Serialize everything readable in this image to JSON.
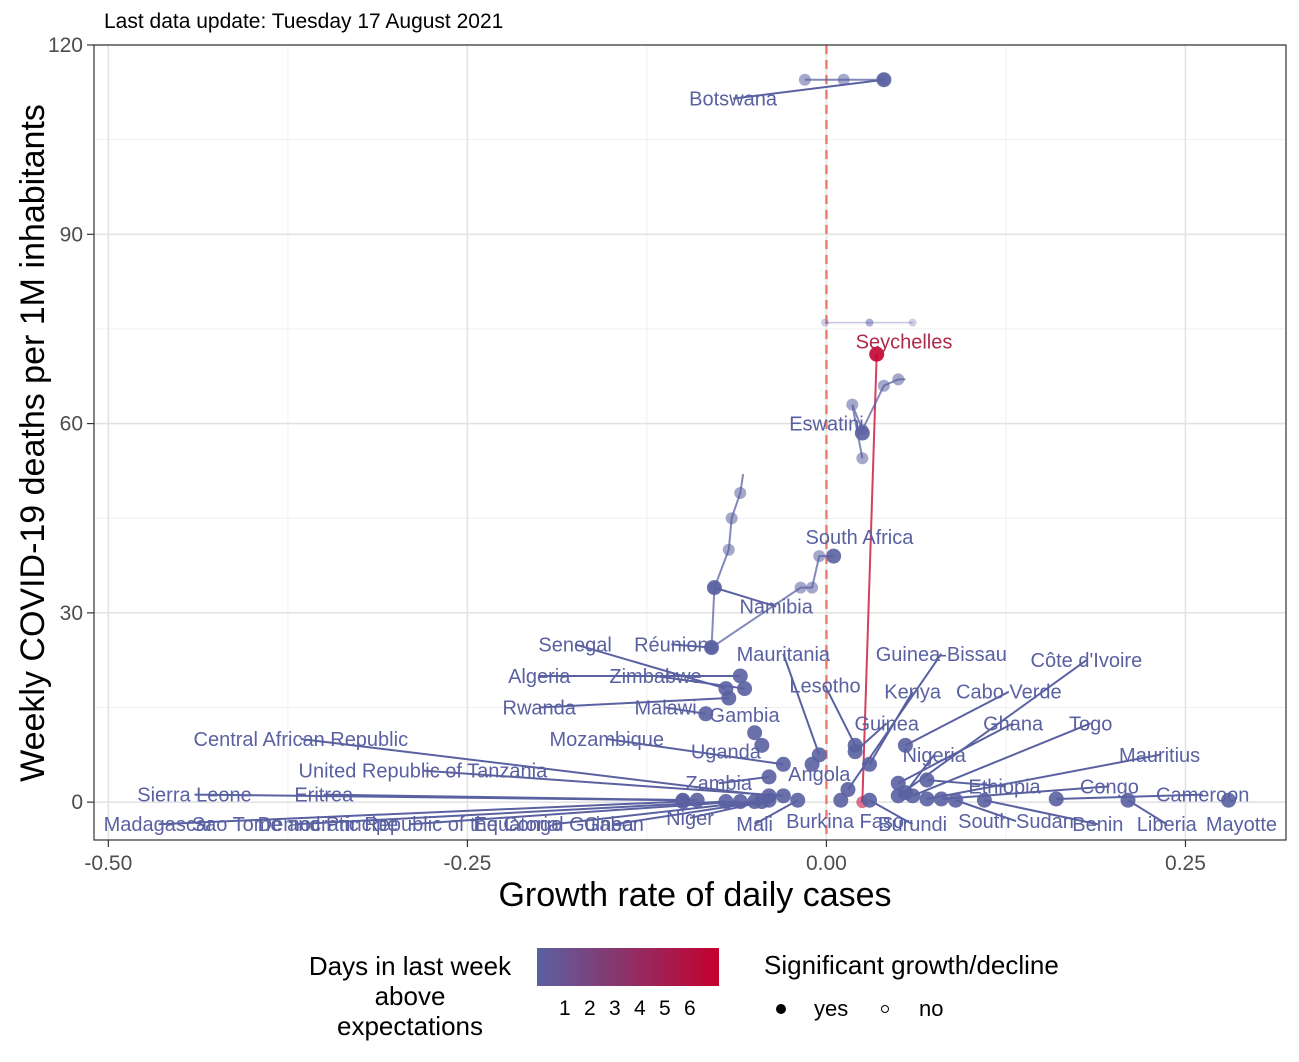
{
  "chart_data": {
    "type": "scatter",
    "subtitle": "Last data update: Tuesday 17 August 2021",
    "xlabel": "Growth rate of daily cases",
    "ylabel": "Weekly COVID-19 deaths per 1M inhabitants",
    "xlim": [
      -0.51,
      0.32
    ],
    "ylim": [
      -6,
      120
    ],
    "x_ticks": [
      -0.5,
      -0.25,
      0,
      0.25
    ],
    "x_tick_labels": [
      "-0.50",
      "-0.25",
      "0.00",
      "0.25"
    ],
    "y_ticks": [
      0,
      30,
      60,
      90,
      120
    ],
    "y_tick_labels": [
      "0",
      "30",
      "60",
      "90",
      "120"
    ],
    "grid": true,
    "reference_line": {
      "x": 0,
      "style": "dashed",
      "color": "#f07a6a"
    },
    "colors": {
      "low": "#5a61a1",
      "high": "#c4002d",
      "mid": "#8a5a8e"
    },
    "series": [
      {
        "country": "Botswana",
        "x": 0.04,
        "y": 114.5,
        "days": 1,
        "trail": [
          [
            -0.015,
            114.5
          ],
          [
            0.012,
            114.5
          ],
          [
            0.04,
            114.5
          ],
          [
            0.04,
            114.5
          ]
        ],
        "faded_trail": [
          [
            0.03,
            76
          ],
          [
            -0.001,
            76
          ],
          [
            0.03,
            76
          ],
          [
            0.06,
            76
          ]
        ]
      },
      {
        "country": "Seychelles",
        "x": 0.035,
        "y": 71,
        "days": 6,
        "trail": [
          [
            0.025,
            0
          ],
          [
            0.035,
            71
          ]
        ]
      },
      {
        "country": "Eswatini",
        "x": 0.025,
        "y": 58.5,
        "days": 1,
        "trail": [
          [
            0.025,
            54.5
          ],
          [
            0.018,
            63
          ],
          [
            0.025,
            59
          ],
          [
            0.04,
            66
          ],
          [
            0.05,
            67
          ],
          [
            0.055,
            67
          ]
        ]
      },
      {
        "country": "South Africa",
        "x": 0.005,
        "y": 39,
        "days": 1,
        "trail": [
          [
            -0.08,
            24.5
          ],
          [
            -0.018,
            34
          ],
          [
            -0.01,
            34
          ],
          [
            -0.005,
            39
          ],
          [
            0.005,
            39
          ]
        ]
      },
      {
        "country": "Namibia",
        "x": -0.078,
        "y": 34,
        "days": 1,
        "trail": [
          [
            -0.08,
            24.5
          ],
          [
            -0.078,
            34
          ],
          [
            -0.068,
            40
          ],
          [
            -0.066,
            45
          ],
          [
            -0.06,
            49
          ],
          [
            -0.058,
            52
          ]
        ]
      },
      {
        "country": "Réunion",
        "x": -0.08,
        "y": 24.5,
        "days": 1
      },
      {
        "country": "Senegal",
        "x": -0.07,
        "y": 18,
        "days": 1
      },
      {
        "country": "Zimbabwe",
        "x": -0.057,
        "y": 18,
        "days": 1
      },
      {
        "country": "Algeria",
        "x": -0.06,
        "y": 20,
        "days": 1
      },
      {
        "country": "Malawi",
        "x": -0.084,
        "y": 14,
        "days": 1
      },
      {
        "country": "Rwanda",
        "x": -0.068,
        "y": 16.5,
        "days": 1
      },
      {
        "country": "Gambia",
        "x": -0.05,
        "y": 11,
        "days": 1
      },
      {
        "country": "Mauritania",
        "x": -0.005,
        "y": 7.5,
        "days": 1
      },
      {
        "country": "Lesotho",
        "x": 0.02,
        "y": 9,
        "days": 1
      },
      {
        "country": "Guinea-Bissau",
        "x": 0.015,
        "y": 2,
        "days": 1
      },
      {
        "country": "Kenya",
        "x": 0.03,
        "y": 6,
        "days": 1
      },
      {
        "country": "Guinea",
        "x": 0.02,
        "y": 8,
        "days": 1
      },
      {
        "country": "Cabo Verde",
        "x": 0.055,
        "y": 9,
        "days": 1
      },
      {
        "country": "Côte d'Ivoire",
        "x": 0.05,
        "y": 1,
        "days": 1
      },
      {
        "country": "Ghana",
        "x": 0.05,
        "y": 3,
        "days": 1
      },
      {
        "country": "Togo",
        "x": 0.06,
        "y": 1,
        "days": 1
      },
      {
        "country": "Nigeria",
        "x": 0.055,
        "y": 1.5,
        "days": 1
      },
      {
        "country": "Mauritius",
        "x": 0.07,
        "y": 0.5,
        "days": 1
      },
      {
        "country": "Ethiopia",
        "x": 0.07,
        "y": 3.5,
        "days": 1
      },
      {
        "country": "Congo",
        "x": 0.08,
        "y": 0.5,
        "days": 1
      },
      {
        "country": "Cameroon",
        "x": 0.16,
        "y": 0.5,
        "days": 1
      },
      {
        "country": "Uganda",
        "x": -0.045,
        "y": 9,
        "days": 1
      },
      {
        "country": "Angola",
        "x": -0.01,
        "y": 6,
        "days": 1
      },
      {
        "country": "Zambia",
        "x": -0.04,
        "y": 4,
        "days": 1
      },
      {
        "country": "Mozambique",
        "x": -0.03,
        "y": 6,
        "days": 1
      },
      {
        "country": "Central African Republic",
        "x": -0.04,
        "y": 1,
        "days": 1
      },
      {
        "country": "United Republic of Tanzania",
        "x": -0.03,
        "y": 1,
        "days": 1
      },
      {
        "country": "Eritrea",
        "x": -0.09,
        "y": 0.3,
        "days": 1
      },
      {
        "country": "Sierra Leone",
        "x": -0.1,
        "y": 0.3,
        "days": 1
      },
      {
        "country": "Niger",
        "x": -0.04,
        "y": 0.3,
        "days": 1
      },
      {
        "country": "Mali",
        "x": -0.02,
        "y": 0.3,
        "days": 1
      },
      {
        "country": "Burkina Faso",
        "x": 0.01,
        "y": 0.3,
        "days": 1
      },
      {
        "country": "Burundi",
        "x": 0.03,
        "y": 0.3,
        "days": 1
      },
      {
        "country": "South Sudan",
        "x": 0.09,
        "y": 0.3,
        "days": 1
      },
      {
        "country": "Benin",
        "x": 0.11,
        "y": 0.3,
        "days": 1
      },
      {
        "country": "Liberia",
        "x": 0.21,
        "y": 0.3,
        "days": 1
      },
      {
        "country": "Mayotte",
        "x": 0.28,
        "y": 0.3,
        "days": 1
      },
      {
        "country": "Madagascar",
        "x": -0.1,
        "y": 0.1,
        "days": 1
      },
      {
        "country": "Sao Tome and Principe",
        "x": -0.07,
        "y": 0.1,
        "days": 1
      },
      {
        "country": "Democratic Republic of the Congo",
        "x": -0.06,
        "y": 0.1,
        "days": 1
      },
      {
        "country": "Equatorial Guinea",
        "x": -0.05,
        "y": 0.1,
        "days": 1
      },
      {
        "country": "Gabon",
        "x": -0.045,
        "y": 0.1,
        "days": 1
      }
    ],
    "labels": [
      {
        "text": "Botswana",
        "x": -0.065,
        "y": 111.5,
        "country": "Botswana"
      },
      {
        "text": "Seychelles",
        "x": 0.054,
        "y": 73,
        "country": "Seychelles",
        "accent": true
      },
      {
        "text": "Eswatini",
        "x": 0.0,
        "y": 60,
        "country": "Eswatini"
      },
      {
        "text": "South Africa",
        "x": 0.023,
        "y": 42,
        "country": "South Africa"
      },
      {
        "text": "Namibia",
        "x": -0.035,
        "y": 31,
        "country": "Namibia"
      },
      {
        "text": "Senegal",
        "x": -0.175,
        "y": 25,
        "country": "Senegal"
      },
      {
        "text": "Réunion",
        "x": -0.108,
        "y": 25,
        "country": "Réunion"
      },
      {
        "text": "Mauritania",
        "x": -0.03,
        "y": 23.5,
        "country": "Mauritania"
      },
      {
        "text": "Guinea-Bissau",
        "x": 0.08,
        "y": 23.5,
        "country": "Guinea-Bissau"
      },
      {
        "text": "Côte d'Ivoire",
        "x": 0.181,
        "y": 22.5,
        "country": "Côte d'Ivoire"
      },
      {
        "text": "Algeria",
        "x": -0.2,
        "y": 20,
        "country": "Algeria"
      },
      {
        "text": "Zimbabwe",
        "x": -0.119,
        "y": 20,
        "country": "Zimbabwe"
      },
      {
        "text": "Lesotho",
        "x": -0.001,
        "y": 18.5,
        "country": "Lesotho"
      },
      {
        "text": "Kenya",
        "x": 0.06,
        "y": 17.5,
        "country": "Kenya"
      },
      {
        "text": "Cabo Verde",
        "x": 0.127,
        "y": 17.5,
        "country": "Cabo Verde"
      },
      {
        "text": "Rwanda",
        "x": -0.2,
        "y": 15,
        "country": "Rwanda"
      },
      {
        "text": "Malawi",
        "x": -0.112,
        "y": 15,
        "country": "Malawi"
      },
      {
        "text": "Gambia",
        "x": -0.057,
        "y": 13.8,
        "country": "Gambia"
      },
      {
        "text": "Guinea",
        "x": 0.042,
        "y": 12.5,
        "country": "Guinea"
      },
      {
        "text": "Ghana",
        "x": 0.13,
        "y": 12.5,
        "country": "Ghana"
      },
      {
        "text": "Togo",
        "x": 0.184,
        "y": 12.5,
        "country": "Togo"
      },
      {
        "text": "Central African Republic",
        "x": -0.366,
        "y": 10,
        "country": "Central African Republic"
      },
      {
        "text": "Mozambique",
        "x": -0.153,
        "y": 10,
        "country": "Mozambique"
      },
      {
        "text": "Uganda",
        "x": -0.07,
        "y": 8,
        "country": "Uganda"
      },
      {
        "text": "Nigeria",
        "x": 0.075,
        "y": 7.5,
        "country": "Nigeria"
      },
      {
        "text": "Mauritius",
        "x": 0.232,
        "y": 7.5,
        "country": "Mauritius"
      },
      {
        "text": "United Republic of Tanzania",
        "x": -0.281,
        "y": 5,
        "country": "United Republic of Tanzania"
      },
      {
        "text": "Angola",
        "x": -0.005,
        "y": 4.5,
        "country": "Angola"
      },
      {
        "text": "Zambia",
        "x": -0.075,
        "y": 3,
        "country": "Zambia"
      },
      {
        "text": "Ethiopia",
        "x": 0.124,
        "y": 2.5,
        "country": "Ethiopia"
      },
      {
        "text": "Congo",
        "x": 0.197,
        "y": 2.5,
        "country": "Congo"
      },
      {
        "text": "Sierra Leone",
        "x": -0.44,
        "y": 1.2,
        "country": "Sierra Leone"
      },
      {
        "text": "Eritrea",
        "x": -0.35,
        "y": 1.2,
        "country": "Eritrea"
      },
      {
        "text": "Cameroon",
        "x": 0.262,
        "y": 1.2,
        "country": "Cameroon"
      },
      {
        "text": "Niger",
        "x": -0.095,
        "y": -2.5,
        "country": "Niger"
      },
      {
        "text": "Madagascar",
        "x": -0.465,
        "y": -3.5,
        "country": "Madagascar"
      },
      {
        "text": "Sao Tome and Principe",
        "x": -0.37,
        "y": -3.5,
        "country": "Sao Tome and Principe"
      },
      {
        "text": "Democratic Republic of the Congo",
        "x": -0.29,
        "y": -3.5,
        "country": "Democratic Republic of the Congo"
      },
      {
        "text": "Equatorial Guinea",
        "x": -0.19,
        "y": -3.5,
        "country": "Equatorial Guinea"
      },
      {
        "text": "Gabon",
        "x": -0.148,
        "y": -3.5,
        "country": "Gabon"
      },
      {
        "text": "Mali",
        "x": -0.05,
        "y": -3.5,
        "country": "Mali"
      },
      {
        "text": "Burkina Faso",
        "x": 0.013,
        "y": -3,
        "country": "Burkina Faso"
      },
      {
        "text": "Burundi",
        "x": 0.06,
        "y": -3.5,
        "country": "Burundi"
      },
      {
        "text": "South Sudan",
        "x": 0.132,
        "y": -3,
        "country": "South Sudan"
      },
      {
        "text": "Benin",
        "x": 0.189,
        "y": -3.5,
        "country": "Benin"
      },
      {
        "text": "Liberia",
        "x": 0.237,
        "y": -3.5,
        "country": "Liberia"
      },
      {
        "text": "Mayotte",
        "x": 0.289,
        "y": -3.5,
        "country": "Mayotte"
      }
    ]
  },
  "legend": {
    "color_title_lines": [
      "Days in last week",
      "above",
      "expectations"
    ],
    "color_ticks": [
      "1",
      "2",
      "3",
      "4",
      "5",
      "6"
    ],
    "shape_title": "Significant growth/decline",
    "shape_items": [
      "yes",
      "no"
    ]
  }
}
